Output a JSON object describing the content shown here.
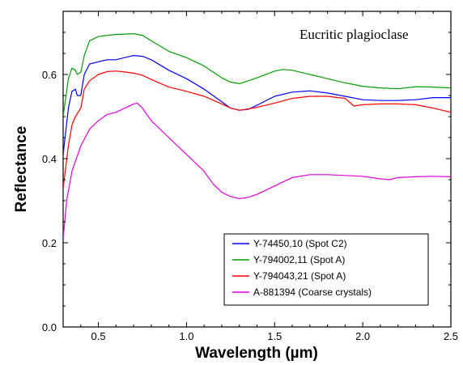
{
  "chart_data": {
    "type": "line",
    "title": "",
    "annotation": "Eucritic plagioclase",
    "xlabel": "Wavelength (µm)",
    "ylabel": "Reflectance",
    "xlim": [
      0.3,
      2.5
    ],
    "ylim": [
      0.0,
      0.75
    ],
    "xticks": [
      "0.5",
      "1.0",
      "1.5",
      "2.0",
      "2.5"
    ],
    "xtick_values": [
      0.5,
      1.0,
      1.5,
      2.0,
      2.5
    ],
    "yticks": [
      "0.0",
      "0.2",
      "0.4",
      "0.6"
    ],
    "ytick_values": [
      0.0,
      0.2,
      0.4,
      0.6
    ],
    "grid": false,
    "legend_position": "bottom-right",
    "series": [
      {
        "name": "Y-74450,10 (Spot C2)",
        "color": "#0000ff",
        "x": [
          0.3,
          0.33,
          0.35,
          0.37,
          0.38,
          0.4,
          0.42,
          0.45,
          0.5,
          0.55,
          0.6,
          0.65,
          0.7,
          0.75,
          0.8,
          0.9,
          1.0,
          1.1,
          1.2,
          1.25,
          1.3,
          1.35,
          1.4,
          1.5,
          1.6,
          1.7,
          1.8,
          1.9,
          2.0,
          2.1,
          2.2,
          2.3,
          2.4,
          2.5
        ],
        "y": [
          0.41,
          0.52,
          0.56,
          0.565,
          0.55,
          0.55,
          0.6,
          0.625,
          0.63,
          0.635,
          0.635,
          0.64,
          0.645,
          0.643,
          0.635,
          0.61,
          0.59,
          0.565,
          0.535,
          0.52,
          0.515,
          0.517,
          0.527,
          0.548,
          0.558,
          0.561,
          0.556,
          0.548,
          0.54,
          0.538,
          0.538,
          0.54,
          0.545,
          0.545
        ]
      },
      {
        "name": "Y-794002,11 (Spot A)",
        "color": "#00a000",
        "x": [
          0.3,
          0.33,
          0.35,
          0.37,
          0.38,
          0.4,
          0.42,
          0.45,
          0.5,
          0.55,
          0.6,
          0.65,
          0.7,
          0.75,
          0.8,
          0.9,
          1.0,
          1.1,
          1.2,
          1.25,
          1.3,
          1.4,
          1.5,
          1.55,
          1.6,
          1.7,
          1.8,
          1.9,
          2.0,
          2.1,
          2.2,
          2.3,
          2.4,
          2.5
        ],
        "y": [
          0.5,
          0.59,
          0.615,
          0.61,
          0.6,
          0.605,
          0.645,
          0.68,
          0.69,
          0.693,
          0.695,
          0.696,
          0.697,
          0.693,
          0.68,
          0.655,
          0.64,
          0.62,
          0.592,
          0.582,
          0.578,
          0.592,
          0.608,
          0.612,
          0.61,
          0.6,
          0.59,
          0.58,
          0.572,
          0.568,
          0.566,
          0.571,
          0.57,
          0.568
        ]
      },
      {
        "name": "Y-794043,21 (Spot A)",
        "color": "#ff0000",
        "x": [
          0.3,
          0.33,
          0.35,
          0.37,
          0.4,
          0.42,
          0.45,
          0.5,
          0.55,
          0.6,
          0.65,
          0.7,
          0.75,
          0.8,
          0.9,
          1.0,
          1.1,
          1.2,
          1.25,
          1.3,
          1.35,
          1.4,
          1.5,
          1.6,
          1.7,
          1.8,
          1.9,
          1.95,
          2.0,
          2.1,
          2.2,
          2.3,
          2.4,
          2.5
        ],
        "y": [
          0.33,
          0.43,
          0.48,
          0.5,
          0.52,
          0.565,
          0.585,
          0.6,
          0.607,
          0.608,
          0.606,
          0.603,
          0.598,
          0.588,
          0.57,
          0.56,
          0.548,
          0.53,
          0.52,
          0.515,
          0.518,
          0.522,
          0.532,
          0.543,
          0.548,
          0.548,
          0.543,
          0.525,
          0.528,
          0.53,
          0.53,
          0.528,
          0.52,
          0.51
        ]
      },
      {
        "name": "A-881394 (Coarse crystals)",
        "color": "#e000e0",
        "x": [
          0.3,
          0.32,
          0.35,
          0.4,
          0.45,
          0.5,
          0.55,
          0.6,
          0.65,
          0.7,
          0.72,
          0.75,
          0.8,
          0.9,
          1.0,
          1.1,
          1.15,
          1.2,
          1.25,
          1.3,
          1.35,
          1.4,
          1.5,
          1.6,
          1.7,
          1.8,
          1.9,
          2.0,
          2.1,
          2.15,
          2.2,
          2.3,
          2.4,
          2.5
        ],
        "y": [
          0.21,
          0.3,
          0.37,
          0.43,
          0.47,
          0.49,
          0.505,
          0.51,
          0.52,
          0.53,
          0.532,
          0.52,
          0.49,
          0.45,
          0.41,
          0.37,
          0.34,
          0.32,
          0.31,
          0.305,
          0.308,
          0.315,
          0.335,
          0.355,
          0.362,
          0.362,
          0.36,
          0.358,
          0.352,
          0.35,
          0.355,
          0.357,
          0.358,
          0.357
        ]
      }
    ]
  }
}
